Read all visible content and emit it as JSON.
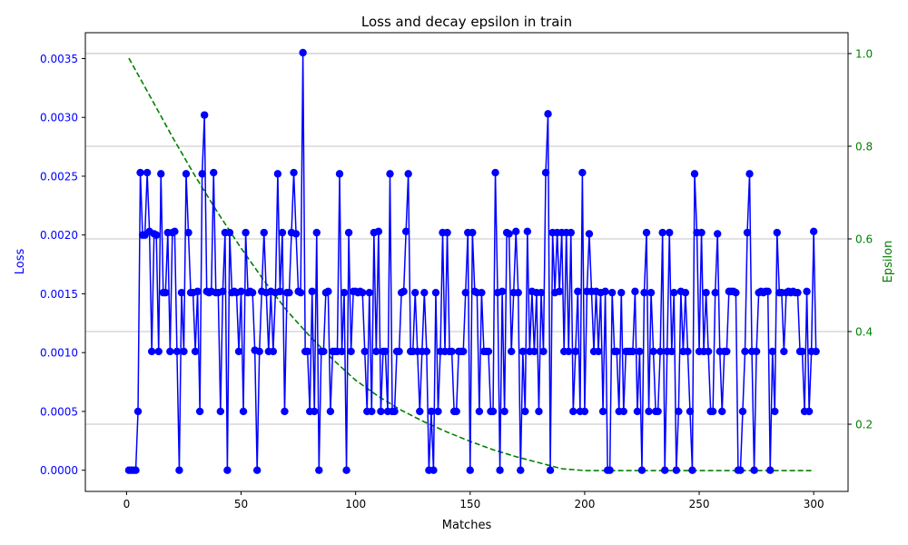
{
  "chart_data": {
    "type": "line",
    "title": "Loss and decay epsilon in train",
    "xlabel": "Matches",
    "ylabel_left": "Loss",
    "ylabel_right": "Epsilon",
    "xlim": [
      -18,
      315
    ],
    "ylim_left": [
      -0.00018,
      0.00372
    ],
    "ylim_right": [
      0.055,
      1.045
    ],
    "x_ticks": [
      0,
      50,
      100,
      150,
      200,
      250,
      300
    ],
    "y_ticks_left": [
      0.0,
      0.0005,
      0.001,
      0.0015,
      0.002,
      0.0025,
      0.003,
      0.0035
    ],
    "y_ticks_right": [
      0.2,
      0.4,
      0.6,
      0.8,
      1.0
    ],
    "y_tick_labels_left": [
      "0.0000",
      "0.0005",
      "0.0010",
      "0.0015",
      "0.0020",
      "0.0025",
      "0.0030",
      "0.0035"
    ],
    "y_tick_labels_right": [
      "0.2",
      "0.4",
      "0.6",
      "0.8",
      "1.0"
    ],
    "grid": "horizontal lines at right-axis ticks",
    "colors": {
      "loss": "#0000ff",
      "epsilon": "#008000",
      "grid": "#b0b0b0",
      "left_axis_text": "#0000ff",
      "right_axis_text": "#008000"
    },
    "series": [
      {
        "axis": "left",
        "style": "solid line with circle markers",
        "values": [
          0,
          0,
          0,
          0,
          0.0005,
          0.00253,
          0.002,
          0.002,
          0.00253,
          0.00203,
          0.00101,
          0.00201,
          0.002,
          0.00101,
          0.00252,
          0.00151,
          0.00151,
          0.00202,
          0.00101,
          0.00202,
          0.00203,
          0.00101,
          0,
          0.00151,
          0.00101,
          0.00252,
          0.00202,
          0.00151,
          0.00151,
          0.00101,
          0.00152,
          0.0005,
          0.00252,
          0.00302,
          0.00152,
          0.00151,
          0.00152,
          0.00253,
          0.00151,
          0.00151,
          0.0005,
          0.00152,
          0.00202,
          0,
          0.00202,
          0.00151,
          0.00152,
          0.00151,
          0.00101,
          0.00152,
          0.0005,
          0.00202,
          0.00151,
          0.00152,
          0.00151,
          0.00102,
          0,
          0.00101,
          0.00152,
          0.00202,
          0.00151,
          0.00101,
          0.00152,
          0.00101,
          0.00151,
          0.00252,
          0.00152,
          0.00202,
          0.0005,
          0.00151,
          0.00151,
          0.00202,
          0.00253,
          0.00201,
          0.00152,
          0.00151,
          0.00355,
          0.00101,
          0.00101,
          0.0005,
          0.00152,
          0.0005,
          0.00202,
          0,
          0.00101,
          0.00101,
          0.00151,
          0.00152,
          0.0005,
          0.00101,
          0.00101,
          0.00101,
          0.00252,
          0.00101,
          0.00151,
          0,
          0.00202,
          0.00101,
          0.00152,
          0.00152,
          0.00151,
          0.00152,
          0.00151,
          0.00101,
          0.0005,
          0.00151,
          0.0005,
          0.00202,
          0.00101,
          0.00203,
          0.0005,
          0.00101,
          0.00101,
          0.0005,
          0.00252,
          0.0005,
          0.0005,
          0.00101,
          0.00101,
          0.00151,
          0.00152,
          0.00203,
          0.00252,
          0.00101,
          0.00101,
          0.00151,
          0.00101,
          0.0005,
          0.00101,
          0.00151,
          0.00101,
          0,
          0.0005,
          0,
          0.00151,
          0.0005,
          0.00101,
          0.00202,
          0.00101,
          0.00202,
          0.00101,
          0.00101,
          0.0005,
          0.0005,
          0.00101,
          0.00101,
          0.00101,
          0.00151,
          0.00202,
          0,
          0.00202,
          0.00152,
          0.00151,
          0.0005,
          0.00151,
          0.00101,
          0.00101,
          0.00101,
          0.0005,
          0.0005,
          0.00253,
          0.00151,
          0,
          0.00152,
          0.0005,
          0.00202,
          0.00201,
          0.00101,
          0.00151,
          0.00203,
          0.00151,
          0,
          0.00101,
          0.0005,
          0.00203,
          0.00101,
          0.00152,
          0.00101,
          0.00151,
          0.0005,
          0.00151,
          0.00101,
          0.00253,
          0.00303,
          0,
          0.00202,
          0.00151,
          0.00202,
          0.00152,
          0.00202,
          0.00101,
          0.00202,
          0.00101,
          0.00202,
          0.0005,
          0.00101,
          0.00152,
          0.0005,
          0.00253,
          0.0005,
          0.00152,
          0.00201,
          0.00152,
          0.00101,
          0.00152,
          0.00101,
          0.00151,
          0.0005,
          0.00152,
          0,
          0,
          0.00151,
          0.00101,
          0.00101,
          0.0005,
          0.00151,
          0.0005,
          0.00101,
          0.00101,
          0.00101,
          0.00101,
          0.00152,
          0.0005,
          0.00101,
          0,
          0.00151,
          0.00202,
          0.0005,
          0.00151,
          0.00101,
          0.0005,
          0.0005,
          0.00101,
          0.00202,
          0,
          0.00101,
          0.00202,
          0.00101,
          0.00151,
          0,
          0.0005,
          0.00152,
          0.00101,
          0.00151,
          0.00101,
          0.0005,
          0,
          0.00252,
          0.00202,
          0.00101,
          0.00202,
          0.00101,
          0.00151,
          0.00101,
          0.0005,
          0.0005,
          0.00151,
          0.00201,
          0.00101,
          0.0005,
          0.00101,
          0.00101,
          0.00152,
          0.00152,
          0.00152,
          0.00151,
          0,
          0,
          0.0005,
          0.00101,
          0.00202,
          0.00252,
          0.00101,
          0,
          0.00101,
          0.00151,
          0.00152,
          0.00151,
          0.00152,
          0.00152,
          0,
          0.00101,
          0.0005,
          0.00202,
          0.00151,
          0.00151,
          0.00101,
          0.00151,
          0.00152,
          0.00151,
          0.00152,
          0.00151,
          0.00151,
          0.00101,
          0.00101,
          0.0005,
          0.00152,
          0.0005,
          0.00101,
          0.00203,
          0.00101
        ],
        "x_start": 1,
        "x_step": 1
      },
      {
        "axis": "right",
        "style": "dashed line",
        "x": [
          1,
          10,
          20,
          30,
          40,
          50,
          60,
          70,
          80,
          90,
          100,
          110,
          120,
          130,
          140,
          150,
          160,
          170,
          180,
          190,
          200,
          250,
          300
        ],
        "values": [
          0.99,
          0.91,
          0.82,
          0.735,
          0.655,
          0.58,
          0.51,
          0.445,
          0.39,
          0.34,
          0.295,
          0.26,
          0.23,
          0.205,
          0.183,
          0.163,
          0.145,
          0.13,
          0.117,
          0.104,
          0.1,
          0.1,
          0.1
        ]
      }
    ]
  }
}
